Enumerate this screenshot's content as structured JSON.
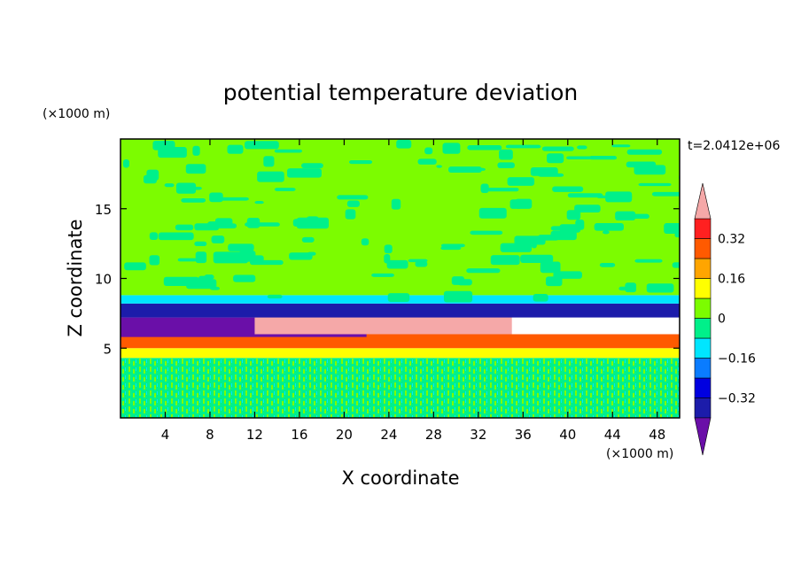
{
  "chart_data": {
    "type": "heatmap",
    "title": "potential temperature deviation",
    "xlabel": "X coordinate",
    "ylabel": "Z coordinate",
    "x_unit": "(×1000 m)",
    "y_unit": "(×1000 m)",
    "time_label": "t=2.0412e+06",
    "xlim": [
      0,
      50
    ],
    "ylim": [
      0,
      20
    ],
    "x_ticks": [
      4,
      8,
      12,
      16,
      20,
      24,
      28,
      32,
      36,
      40,
      44,
      48
    ],
    "y_ticks": [
      5,
      10,
      15
    ],
    "colorbar": {
      "levels": [
        -0.48,
        -0.4,
        -0.32,
        -0.24,
        -0.16,
        -0.08,
        0,
        0.08,
        0.16,
        0.24,
        0.32,
        0.4
      ],
      "tick_values": [
        0.32,
        0.16,
        0,
        -0.16,
        -0.32
      ],
      "tick_labels": [
        "0.32",
        "0.16",
        "0",
        "−0.16",
        "−0.32"
      ],
      "colors": [
        "#6a0fa8",
        "#1c1caa",
        "#0000e0",
        "#0a7cff",
        "#00e6ff",
        "#00f08a",
        "#7cfc00",
        "#ffff00",
        "#ffa500",
        "#ff5a00",
        "#ff2020",
        "#f5a8a8"
      ],
      "extend": "both"
    },
    "field_bands": [
      {
        "z_range": [
          0,
          4.3
        ],
        "dominant": "#00f08a",
        "mixed_with": "#7cfc00",
        "value_approx": 0.0
      },
      {
        "z_range": [
          4.3,
          5.0
        ],
        "dominant": "#ffff00",
        "value_approx": 0.2
      },
      {
        "z_range": [
          5.0,
          6.0
        ],
        "dominant": "#ff5a00",
        "value_approx": 0.3
      },
      {
        "z_range": [
          5.8,
          7.2
        ],
        "dominant": "#6a0fa8",
        "value_approx": -0.45,
        "x_extent": [
          0,
          22
        ]
      },
      {
        "z_range": [
          6.0,
          7.6
        ],
        "dominant": "#f5a8a8",
        "value_approx": 0.45,
        "x_extent": [
          12,
          35
        ]
      },
      {
        "z_range": [
          7.2,
          8.2
        ],
        "dominant": "#1c1caa",
        "value_approx": -0.35
      },
      {
        "z_range": [
          8.2,
          8.8
        ],
        "dominant": "#00e6ff",
        "value_approx": -0.1
      },
      {
        "z_range": [
          8.8,
          20
        ],
        "dominant": "#7cfc00",
        "mixed_with": "#00f08a",
        "value_approx": 0.05
      }
    ]
  }
}
